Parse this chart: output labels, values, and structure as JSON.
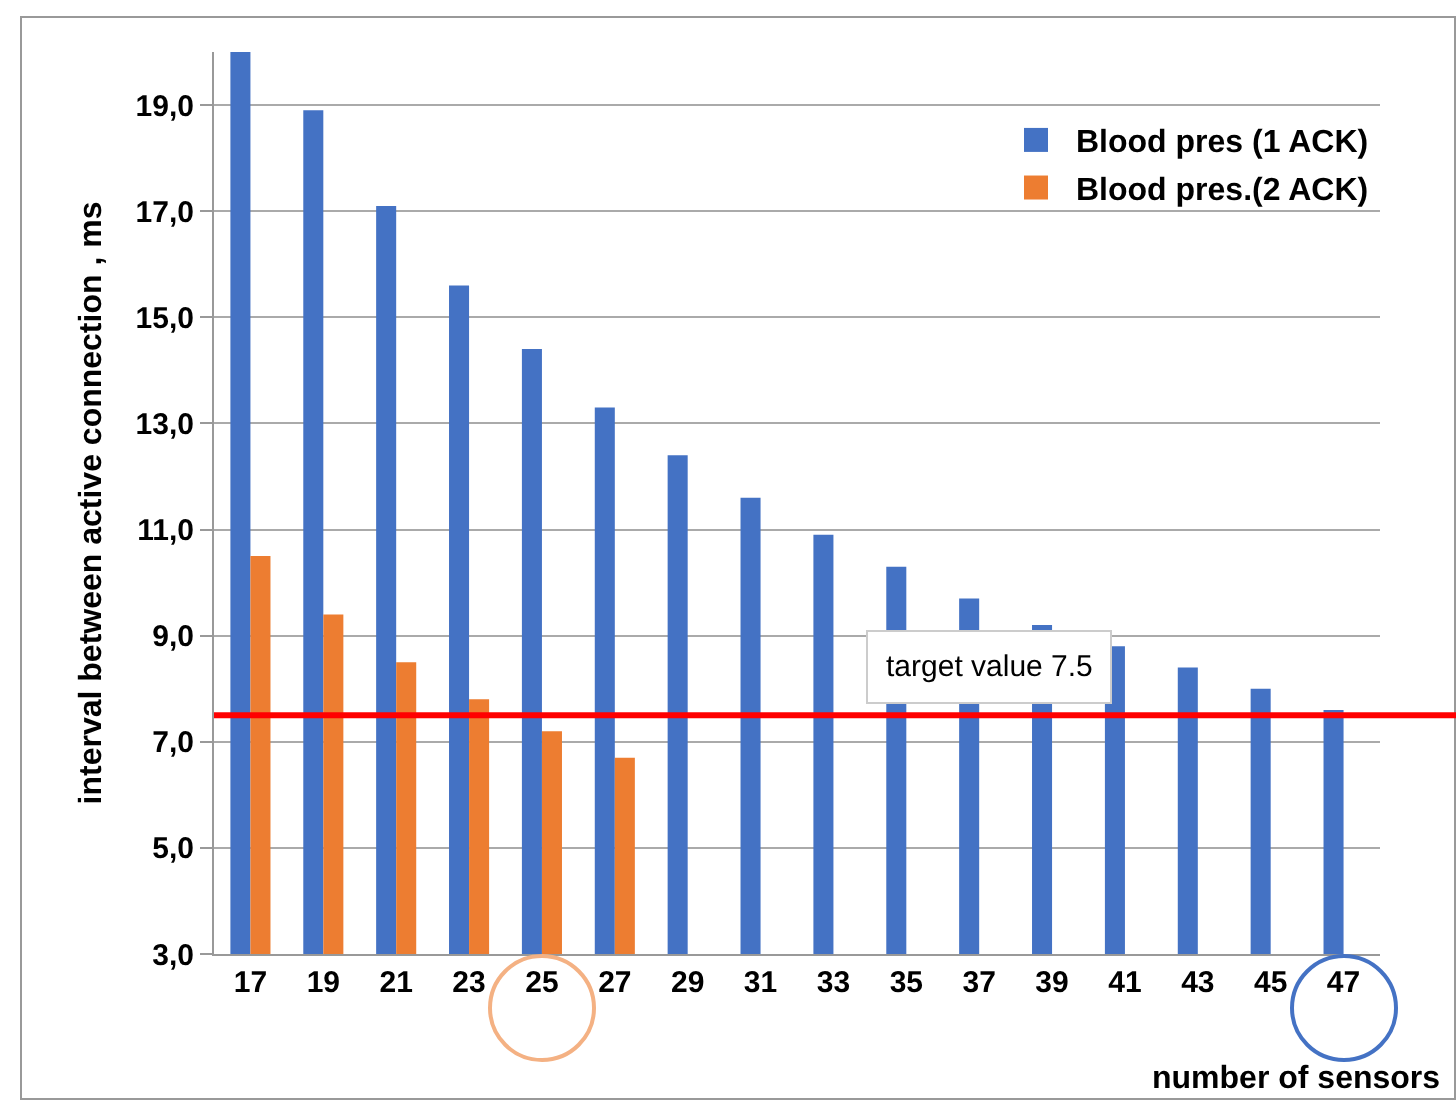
{
  "chart_data": {
    "type": "bar",
    "xlabel": "number of sensors",
    "ylabel": "interval between active connection , ms",
    "categories": [
      "17",
      "19",
      "21",
      "23",
      "25",
      "27",
      "29",
      "31",
      "33",
      "35",
      "37",
      "39",
      "41",
      "43",
      "45",
      "47"
    ],
    "series": [
      {
        "name": "Blood pres (1 ACK)",
        "color": "#4472c4",
        "values": [
          20.0,
          18.9,
          17.1,
          15.6,
          14.4,
          13.3,
          12.4,
          11.6,
          10.9,
          10.3,
          9.7,
          9.2,
          8.8,
          8.4,
          8.0,
          7.6
        ]
      },
      {
        "name": "Blood pres.(2 ACK)",
        "color": "#ed7d31",
        "values": [
          10.5,
          9.4,
          8.5,
          7.8,
          7.2,
          6.7,
          null,
          null,
          null,
          null,
          null,
          null,
          null,
          null,
          null,
          null
        ]
      }
    ],
    "ylim": [
      3,
      20
    ],
    "yticks": [
      {
        "value": 3,
        "label": "3,0"
      },
      {
        "value": 5,
        "label": "5,0"
      },
      {
        "value": 7,
        "label": "7,0"
      },
      {
        "value": 9,
        "label": "9,0"
      },
      {
        "value": 11,
        "label": "11,0"
      },
      {
        "value": 13,
        "label": "13,0"
      },
      {
        "value": 15,
        "label": "15,0"
      },
      {
        "value": 17,
        "label": "17,0"
      },
      {
        "value": 19,
        "label": "19,0"
      }
    ],
    "grid": "y",
    "legend": "top right",
    "ref_lines": [
      {
        "axis": "y",
        "value": 7.5,
        "label": "target value 7.5",
        "color": "#ff0000"
      }
    ]
  }
}
